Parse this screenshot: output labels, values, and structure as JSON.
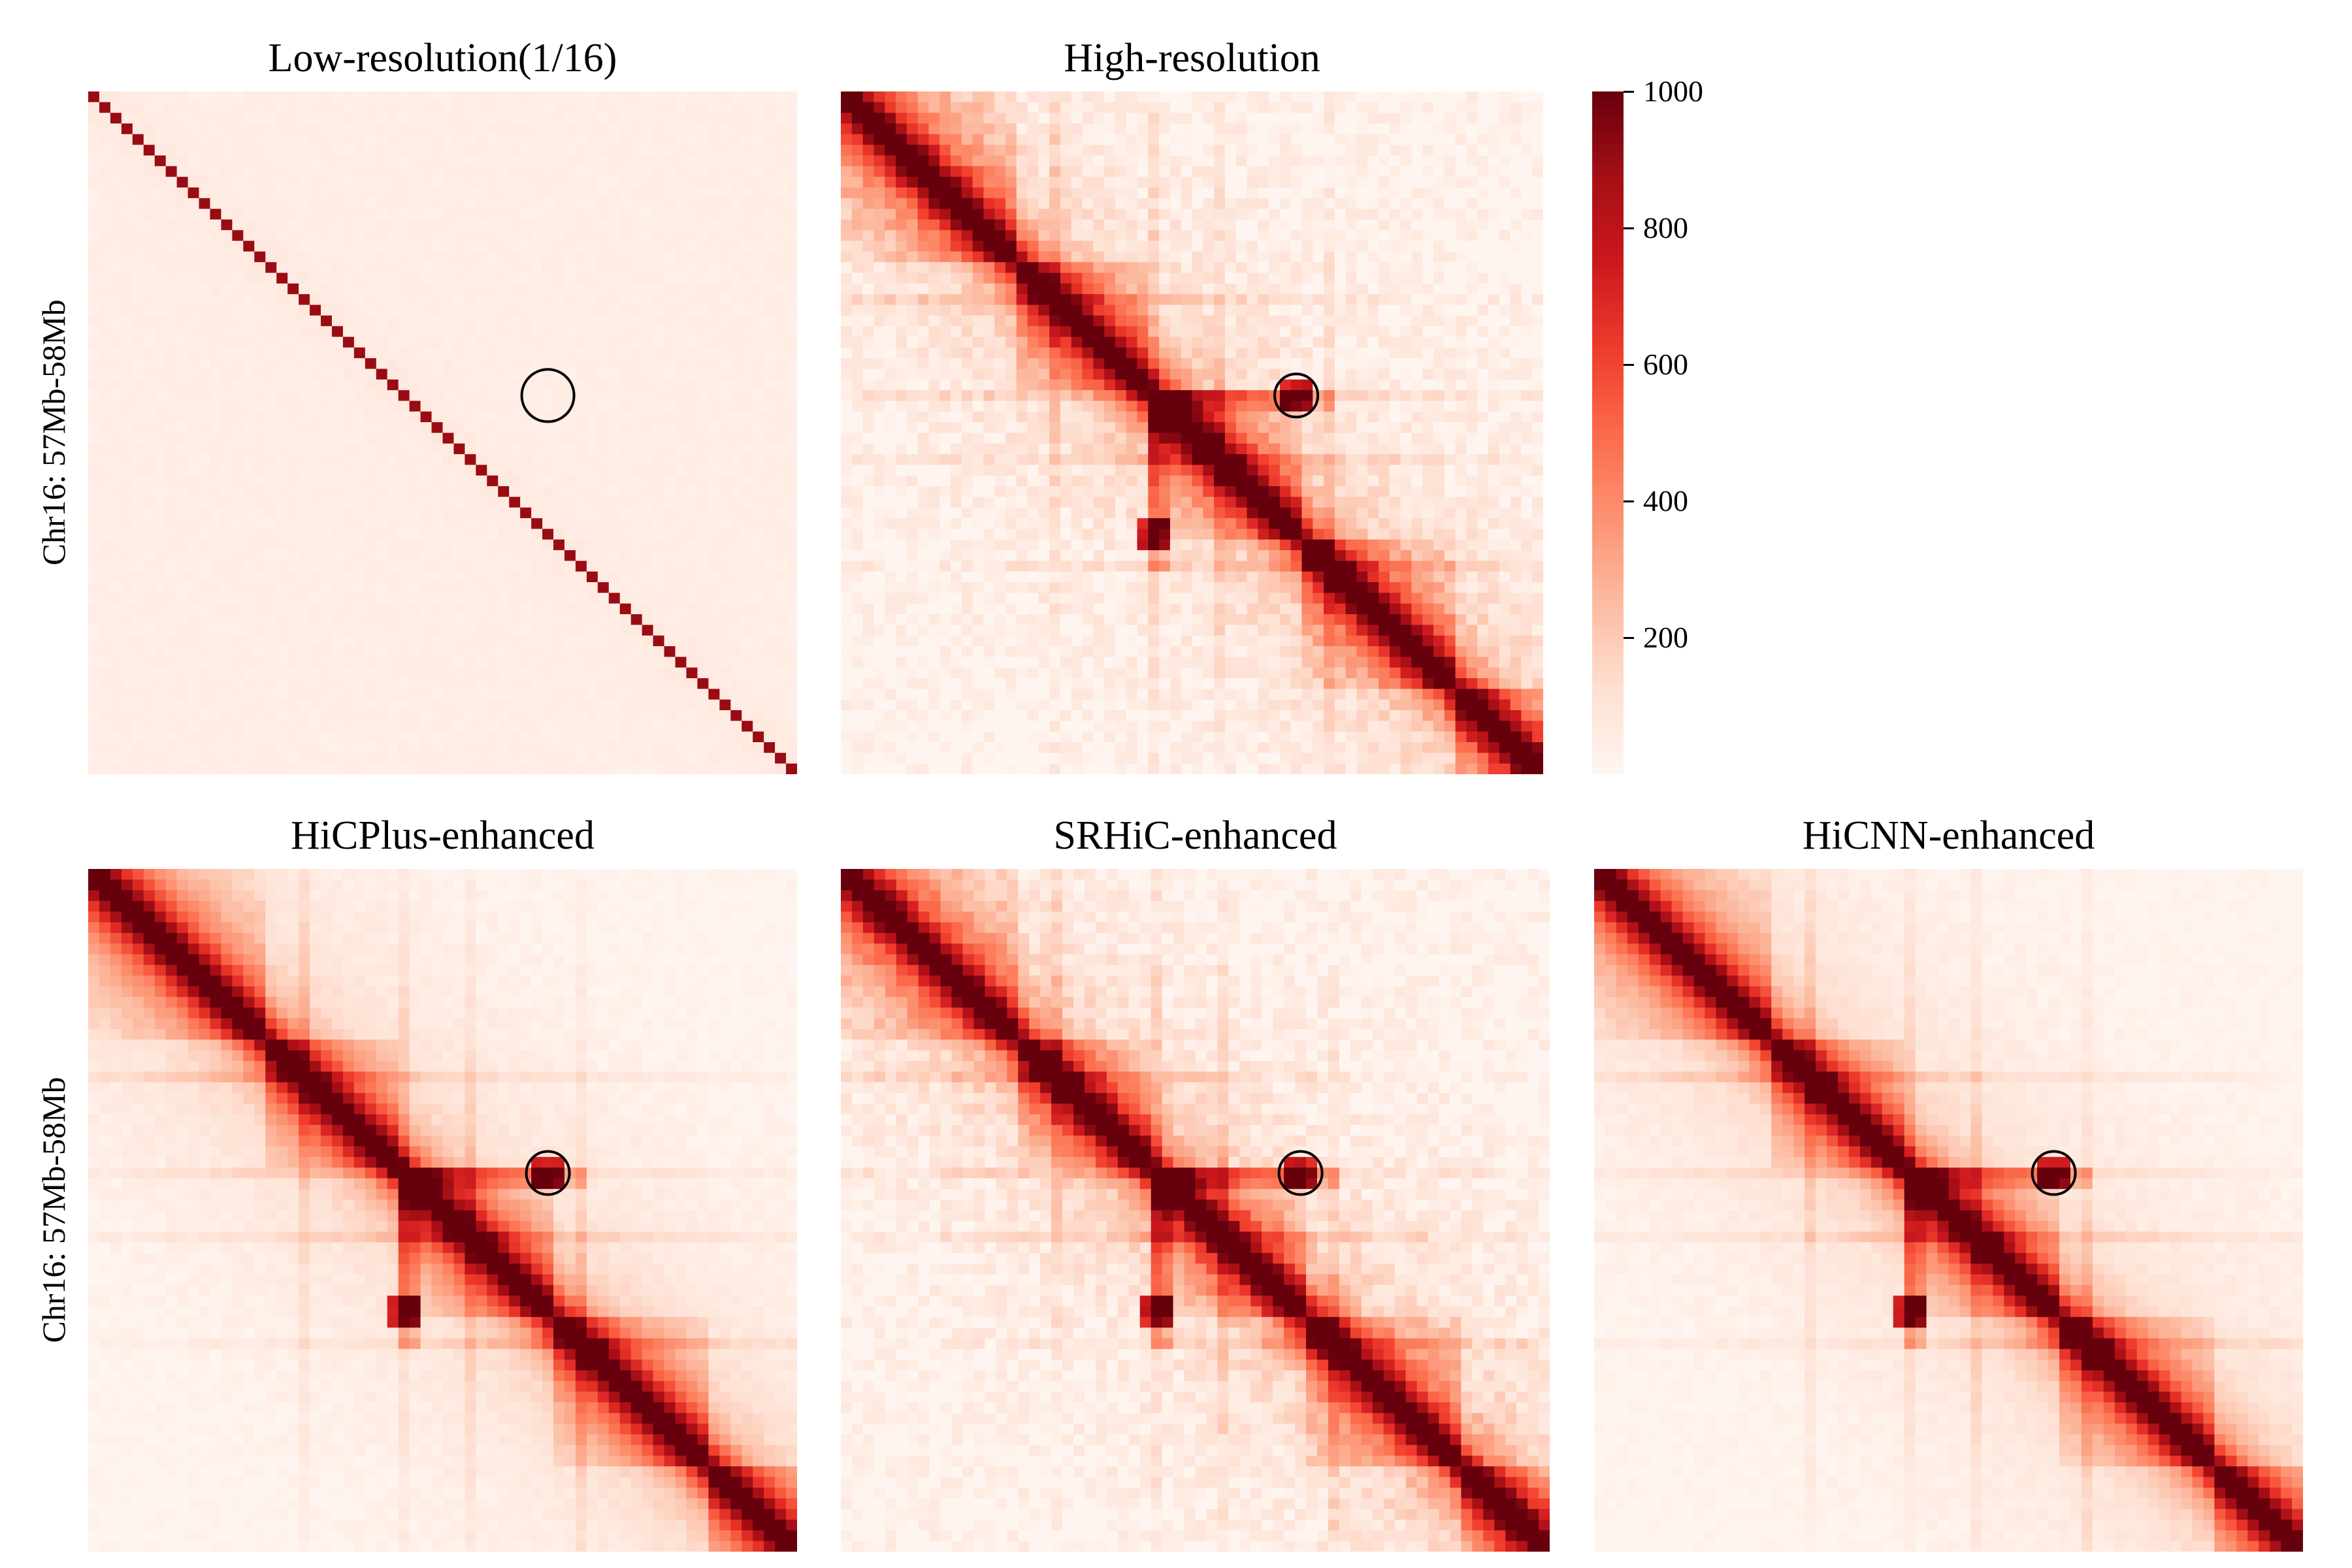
{
  "chart_data": {
    "type": "heatmap",
    "colormap": "Reds",
    "color_low": "#fff5f0",
    "color_high": "#67000d",
    "value_range": [
      0,
      1000
    ],
    "grid": false,
    "matrix_size": 64,
    "ylabel": "Chr16: 57Mb-58Mb",
    "colorbar": {
      "ticks": [
        200,
        400,
        600,
        800,
        1000
      ],
      "labels": [
        "200",
        "400",
        "600",
        "800",
        "1000"
      ]
    },
    "panels": [
      {
        "id": "low",
        "title": "Low-resolution(1/16)",
        "style": "sparse",
        "marker": {
          "row": 28,
          "col": 41
        }
      },
      {
        "id": "high",
        "title": "High-resolution",
        "style": "dense",
        "marker": {
          "row": 28,
          "col": 41
        }
      },
      {
        "id": "hicplus",
        "title": "HiCPlus-enhanced",
        "style": "smooth",
        "marker": {
          "row": 28,
          "col": 41
        }
      },
      {
        "id": "srhic",
        "title": "SRHiC-enhanced",
        "style": "dense",
        "marker": {
          "row": 28,
          "col": 41
        }
      },
      {
        "id": "hicnn",
        "title": "HiCNN-enhanced",
        "style": "smooth",
        "marker": {
          "row": 28,
          "col": 41
        }
      }
    ]
  }
}
